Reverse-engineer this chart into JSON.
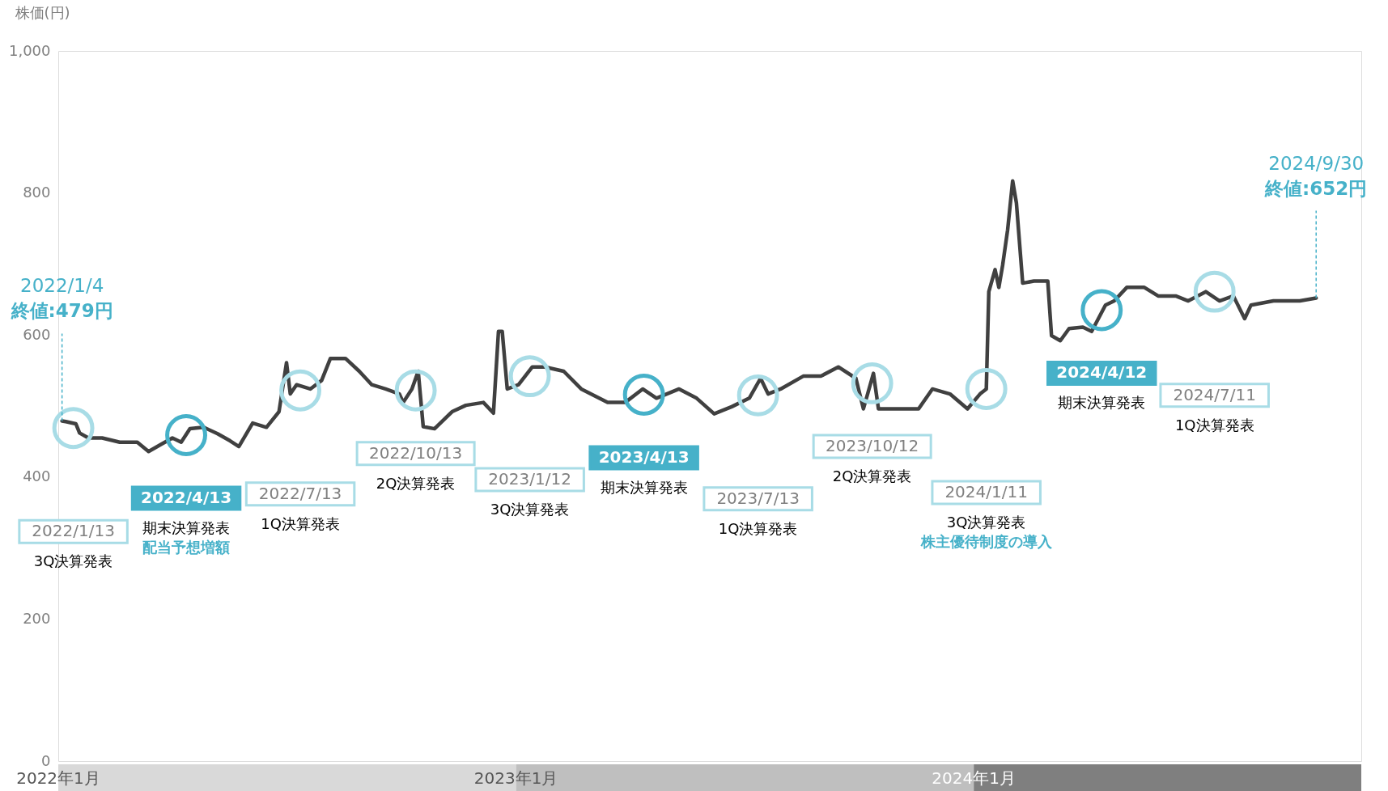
{
  "chart_data": {
    "type": "line",
    "ylabel": "株価(円)",
    "ylim": [
      0,
      1000
    ],
    "yticks": [
      0,
      200,
      400,
      600,
      800,
      {
        "value": 1000,
        "label": "1,000"
      }
    ],
    "xlim": [
      "2022-01-01",
      "2024-11-05"
    ],
    "xticks": [
      {
        "value": "2022-01-01",
        "label": "2022年1月"
      },
      {
        "value": "2023-01-01",
        "label": "2023年1月"
      },
      {
        "value": "2024-01-01",
        "label": "2024年1月"
      }
    ],
    "tick_labels": true,
    "grid": false,
    "series": [
      {
        "color": "#404040",
        "marker": "none",
        "line_style": "solid",
        "x": [
          "2022-01-04",
          "2022-01-07",
          "2022-01-15",
          "2022-01-18",
          "2022-01-25",
          "2022-02-05",
          "2022-02-19",
          "2022-03-05",
          "2022-03-14",
          "2022-03-23",
          "2022-04-02",
          "2022-04-09",
          "2022-04-16",
          "2022-04-27",
          "2022-05-08",
          "2022-05-18",
          "2022-05-25",
          "2022-06-05",
          "2022-06-16",
          "2022-06-26",
          "2022-07-02",
          "2022-07-05",
          "2022-07-10",
          "2022-07-21",
          "2022-07-30",
          "2022-08-06",
          "2022-08-18",
          "2022-08-29",
          "2022-09-08",
          "2022-09-19",
          "2022-09-30",
          "2022-10-03",
          "2022-10-10",
          "2022-10-15",
          "2022-10-19",
          "2022-10-28",
          "2022-11-11",
          "2022-11-22",
          "2022-12-06",
          "2022-12-14",
          "2022-12-18",
          "2022-12-21",
          "2022-12-25",
          "2023-01-03",
          "2023-01-14",
          "2023-01-24",
          "2023-02-08",
          "2023-02-22",
          "2023-03-15",
          "2023-03-29",
          "2023-04-12",
          "2023-04-23",
          "2023-05-11",
          "2023-05-25",
          "2023-06-08",
          "2023-06-22",
          "2023-07-06",
          "2023-07-15",
          "2023-07-21",
          "2023-07-31",
          "2023-08-18",
          "2023-09-01",
          "2023-09-15",
          "2023-09-29",
          "2023-10-05",
          "2023-10-13",
          "2023-10-17",
          "2023-11-04",
          "2023-11-18",
          "2023-11-29",
          "2023-12-13",
          "2023-12-27",
          "2024-01-06",
          "2024-01-11",
          "2024-01-13",
          "2024-01-18",
          "2024-01-21",
          "2024-01-24",
          "2024-01-28",
          "2024-02-01",
          "2024-02-04",
          "2024-02-09",
          "2024-02-18",
          "2024-02-29",
          "2024-03-03",
          "2024-03-10",
          "2024-03-17",
          "2024-03-28",
          "2024-04-04",
          "2024-04-15",
          "2024-04-22",
          "2024-05-02",
          "2024-05-16",
          "2024-05-27",
          "2024-06-10",
          "2024-06-20",
          "2024-07-04",
          "2024-07-15",
          "2024-07-26",
          "2024-08-04",
          "2024-08-09",
          "2024-08-27",
          "2024-09-17",
          "2024-09-30"
        ],
        "values": [
          479,
          478,
          475,
          462,
          455,
          455,
          449,
          449,
          436,
          445,
          455,
          449,
          468,
          470,
          461,
          451,
          443,
          476,
          470,
          492,
          561,
          517,
          530,
          524,
          536,
          567,
          567,
          549,
          530,
          524,
          517,
          505,
          524,
          549,
          471,
          468,
          492,
          501,
          505,
          490,
          605,
          605,
          524,
          530,
          555,
          555,
          549,
          524,
          505,
          505,
          524,
          511,
          524,
          511,
          489,
          499,
          511,
          539,
          517,
          524,
          542,
          542,
          555,
          539,
          496,
          546,
          496,
          496,
          496,
          524,
          517,
          496,
          517,
          524,
          661,
          692,
          667,
          698,
          748,
          817,
          786,
          673,
          676,
          676,
          599,
          592,
          609,
          611,
          605,
          642,
          648,
          667,
          667,
          655,
          655,
          648,
          661,
          648,
          655,
          623,
          642,
          648,
          648,
          652
        ]
      },
      {
        "type": "scatter",
        "color": "#a8dce6",
        "marker": "circle",
        "x": [
          "2022-01-13",
          "2022-07-13",
          "2022-10-13",
          "2023-01-12",
          "2023-07-13",
          "2023-10-12",
          "2024-01-11",
          "2024-07-11"
        ],
        "values": [
          469,
          522,
          522,
          542,
          515,
          532,
          524,
          661
        ]
      },
      {
        "type": "scatter",
        "color": "#46b1c9",
        "marker": "circle",
        "x": [
          "2022-04-13",
          "2023-04-13",
          "2024-04-12"
        ],
        "values": [
          459,
          516,
          635
        ]
      }
    ],
    "annotations": [
      {
        "text": "2022/1/4\n終値:479円",
        "x": "2022-01-04",
        "y": 479
      },
      "2022/1/13\n3Q決算発表",
      "2022/4/13\n期末決算発表",
      "配当予想増額",
      "2022/7/13\n1Q決算発表",
      "2022/10/13\n2Q決算発表",
      "2023/1/12\n3Q決算発表",
      "2023/4/13\n期末決算発表",
      "2023/7/13\n1Q決算発表",
      "2023/10/12\n2Q決算発表",
      "2024/1/11\n3Q決算発表",
      "株主優待制度の導入",
      "2024/4/12\n期末決算発表",
      "2024/7/11\n1Q決算発表",
      {
        "text": "2024/9/30\n終値:652円",
        "x": "2024-09-30",
        "y": 652
      }
    ]
  }
}
